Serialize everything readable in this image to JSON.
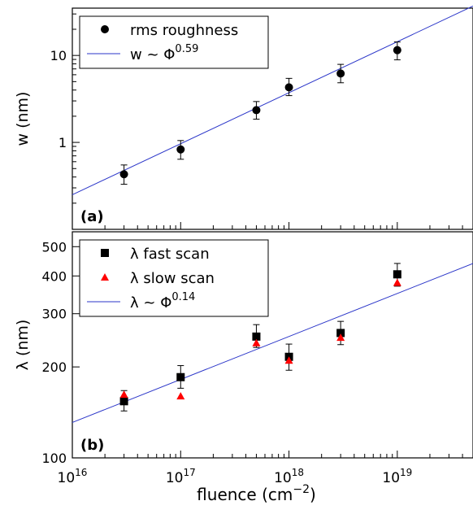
{
  "colors": {
    "axis": "#000000",
    "fit_line": "#2b36c9",
    "rms_marker": "#000000",
    "fast_marker": "#000000",
    "slow_marker": "#ff0000"
  },
  "chart_data": [
    {
      "type": "scatter",
      "panel_label": "(a)",
      "xscale": "log",
      "yscale": "log",
      "xlim": [
        1e+16,
        5e+19
      ],
      "ylim": [
        0.1,
        35
      ],
      "ylabel": "w (nm)",
      "ytick_labels": [
        "1",
        "10"
      ],
      "ytick_values": [
        1,
        10
      ],
      "legend_position": "top-left",
      "series": [
        {
          "name": "rms roughness",
          "marker": "circle",
          "color": "#000000",
          "x": [
            3e+16,
            1e+17,
            5e+17,
            1e+18,
            3e+18,
            1e+19
          ],
          "y": [
            0.43,
            0.83,
            2.35,
            4.3,
            6.2,
            11.5
          ],
          "yerr_low": [
            0.33,
            0.64,
            1.85,
            3.45,
            4.85,
            8.9
          ],
          "yerr_high": [
            0.55,
            1.05,
            2.95,
            5.45,
            7.9,
            14.3
          ]
        }
      ],
      "fit": {
        "legend_prefix": "w ~ ",
        "legend_symbol": "Φ",
        "exponent": "0.59",
        "x": [
          1e+16,
          5e+19
        ],
        "y": [
          0.25,
          37
        ]
      }
    },
    {
      "type": "scatter",
      "panel_label": "(b)",
      "xscale": "log",
      "yscale": "log",
      "xlim": [
        1e+16,
        5e+19
      ],
      "ylim": [
        100,
        560
      ],
      "xlabel": "fluence (cm",
      "xlabel_sup": "−2",
      "xlabel_suffix": ")",
      "ylabel": "λ (nm)",
      "ytick_labels": [
        "100",
        "200",
        "300",
        "400",
        "500"
      ],
      "ytick_values": [
        100,
        200,
        300,
        400,
        500
      ],
      "xtick_base": "10",
      "xtick_exponents": [
        "16",
        "17",
        "18",
        "19"
      ],
      "xtick_values": [
        1e+16,
        1e+17,
        1e+18,
        1e+19
      ],
      "legend_position": "top-left",
      "series": [
        {
          "name": "λ fast scan",
          "marker": "square",
          "color": "#000000",
          "x": [
            3e+16,
            1e+17,
            5e+17,
            1e+18,
            3e+18,
            1e+19
          ],
          "y": [
            154,
            185,
            252,
            216,
            259,
            405
          ],
          "yerr_low": [
            143,
            170,
            232,
            195,
            237,
            370
          ],
          "yerr_high": [
            167,
            202,
            276,
            238,
            283,
            440
          ]
        },
        {
          "name": "λ slow scan",
          "marker": "triangle",
          "color": "#ff0000",
          "x": [
            3e+16,
            1e+17,
            5e+17,
            1e+18,
            3e+18,
            1e+19
          ],
          "y": [
            162,
            160,
            240,
            210,
            250,
            380
          ]
        }
      ],
      "fit": {
        "legend_prefix": "λ ~ ",
        "legend_symbol": "Φ",
        "exponent": "0.14",
        "x": [
          1e+16,
          5e+19
        ],
        "y": [
          131,
          440
        ]
      }
    }
  ]
}
